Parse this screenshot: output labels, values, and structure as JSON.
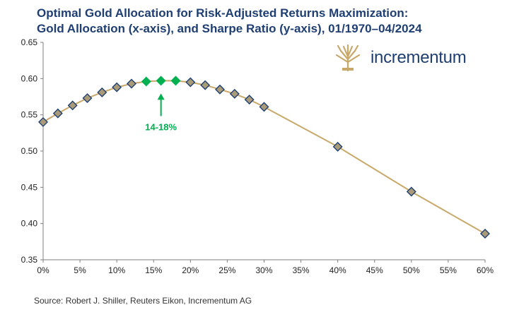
{
  "title_line1": "Optimal Gold Allocation for Risk-Adjusted Returns Maximization:",
  "title_line2": "Gold Allocation (x-axis), and Sharpe Ratio (y-axis), 01/1970–04/2024",
  "source": "Source: Robert J. Shiller, Reuters Eikon, Incrementum AG",
  "logo": {
    "text": "incrementum",
    "icon": "tree-icon"
  },
  "colors": {
    "title": "#1f3f73",
    "line": "#c8a96a",
    "marker": "#aa9b78",
    "highlight": "#00b050",
    "marker_edge": "#1f3f73"
  },
  "chart_data": {
    "type": "line",
    "title": "Optimal Gold Allocation for Risk-Adjusted Returns Maximization: Gold Allocation (x-axis), and Sharpe Ratio (y-axis), 01/1970–04/2024",
    "xlabel": "",
    "ylabel": "",
    "x": [
      0,
      2,
      4,
      6,
      8,
      10,
      12,
      14,
      16,
      18,
      20,
      22,
      24,
      26,
      28,
      30,
      40,
      50,
      60
    ],
    "y": [
      0.54,
      0.552,
      0.563,
      0.573,
      0.581,
      0.588,
      0.593,
      0.596,
      0.597,
      0.597,
      0.595,
      0.591,
      0.585,
      0.579,
      0.571,
      0.561,
      0.506,
      0.444,
      0.386
    ],
    "highlight_x": [
      14,
      16,
      18
    ],
    "xlim": [
      0,
      60
    ],
    "ylim": [
      0.35,
      0.65
    ],
    "x_ticks": [
      "0%",
      "5%",
      "10%",
      "15%",
      "20%",
      "25%",
      "30%",
      "35%",
      "40%",
      "45%",
      "50%",
      "55%",
      "60%"
    ],
    "y_ticks": [
      "0.35",
      "0.40",
      "0.45",
      "0.50",
      "0.55",
      "0.60",
      "0.65"
    ],
    "annotation": {
      "text": "14-18%",
      "x": 16
    },
    "grid": false,
    "legend": "none"
  }
}
